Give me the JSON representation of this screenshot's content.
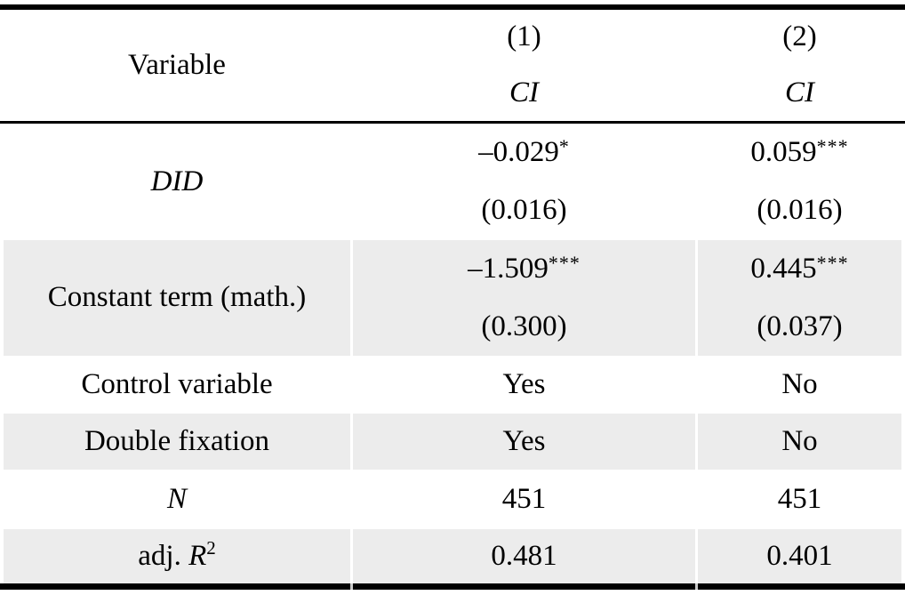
{
  "header": {
    "variable_label": "Variable",
    "model1": {
      "number": "(1)",
      "outcome": "CI"
    },
    "model2": {
      "number": "(2)",
      "outcome": "CI"
    }
  },
  "rows": {
    "did": {
      "label": "DID",
      "m1": {
        "coef": "–0.029",
        "stars": "*",
        "se": "(0.016)"
      },
      "m2": {
        "coef": "0.059",
        "stars": "***",
        "se": "(0.016)"
      }
    },
    "constant": {
      "label": "Constant term (math.)",
      "m1": {
        "coef": "–1.509",
        "stars": "***",
        "se": "(0.300)"
      },
      "m2": {
        "coef": "0.445",
        "stars": "***",
        "se": "(0.037)"
      }
    },
    "control": {
      "label": "Control variable",
      "m1": "Yes",
      "m2": "No"
    },
    "fixation": {
      "label": "Double fixation",
      "m1": "Yes",
      "m2": "No"
    },
    "n": {
      "label": "N",
      "m1": "451",
      "m2": "451"
    },
    "r2": {
      "label_prefix": "adj. ",
      "label_symbol": "R",
      "label_sup": "2",
      "m1": "0.481",
      "m2": "0.401"
    }
  },
  "colors": {
    "stripe": "#ececec",
    "border": "#000000",
    "text": "#000000"
  }
}
